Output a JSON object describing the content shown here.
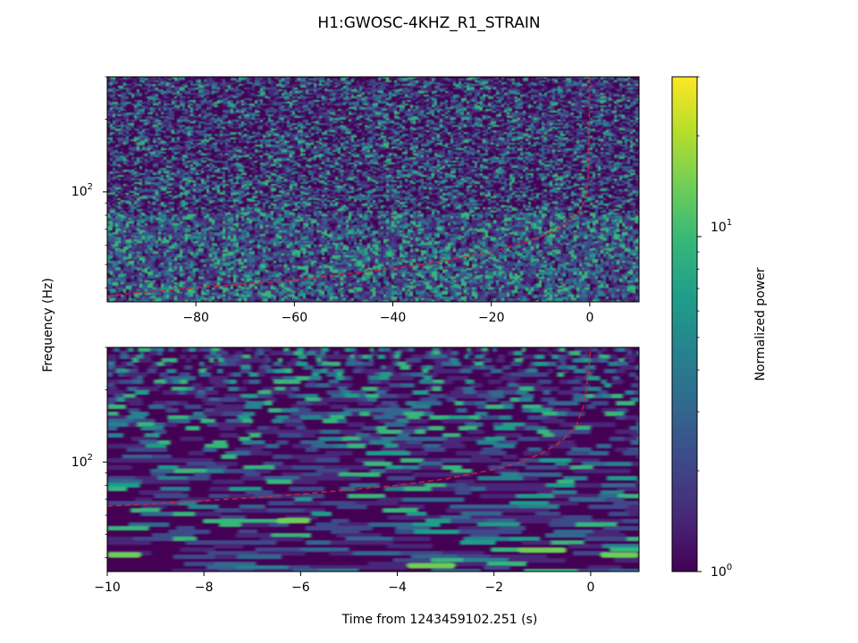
{
  "chart_data": [
    {
      "type": "heatmap",
      "title": "H1:GWOSC-4KHZ_R1_STRAIN",
      "ylabel": "Frequency (Hz)",
      "xlabel": "",
      "xlim": [
        -98,
        10
      ],
      "ylim": [
        35,
        300
      ],
      "yscale": "log",
      "x_ticks": [
        -80,
        -60,
        -40,
        -20,
        0
      ],
      "x_tick_labels": [
        "−80",
        "−60",
        "−40",
        "−20",
        "0"
      ],
      "y_ticks": [
        100
      ],
      "y_tick_labels": [
        "10",
        "2"
      ],
      "overlay": {
        "style": "dashed",
        "color": "#d62728",
        "x": [
          -98,
          -90,
          -80,
          -70,
          -60,
          -50,
          -40,
          -30,
          -20,
          -15,
          -10,
          -5,
          -2,
          -1,
          -0.5,
          -0.2,
          0
        ],
        "y": [
          37,
          38.5,
          40,
          41.5,
          43,
          45.5,
          48,
          51.5,
          56.5,
          60,
          65,
          73,
          84,
          92,
          105,
          130,
          300
        ]
      }
    },
    {
      "type": "heatmap",
      "xlabel": "Time from 1243459102.251 (s)",
      "ylabel": "Frequency (Hz)",
      "xlim": [
        -10,
        1
      ],
      "ylim": [
        35,
        300
      ],
      "yscale": "log",
      "x_ticks": [
        -10,
        -8,
        -6,
        -4,
        -2,
        0
      ],
      "x_tick_labels": [
        "−10",
        "−8",
        "−6",
        "−4",
        "−2",
        "0"
      ],
      "y_ticks": [
        100
      ],
      "y_tick_labels": [
        "10",
        "2"
      ],
      "bright_bands": [
        {
          "x": [
            -10,
            -9.3
          ],
          "y": 41
        },
        {
          "x": [
            -6.5,
            -5.8
          ],
          "y": 57
        },
        {
          "x": [
            -1.5,
            -0.5
          ],
          "y": 43
        },
        {
          "x": [
            0.2,
            1
          ],
          "y": 41
        },
        {
          "x": [
            -3.8,
            -2.8
          ],
          "y": 37
        }
      ],
      "overlay": {
        "style": "dashed",
        "color": "#d62728",
        "x": [
          -10,
          -9,
          -8,
          -7,
          -6,
          -5,
          -4,
          -3,
          -2,
          -1.5,
          -1,
          -0.6,
          -0.3,
          -0.15,
          -0.05,
          0
        ],
        "y": [
          65.5,
          67,
          69,
          71,
          73.5,
          76.5,
          80,
          85,
          93,
          99,
          109,
          122,
          142,
          170,
          230,
          300
        ]
      }
    }
  ],
  "colorbar": {
    "label": "Normalized power",
    "scale": "log",
    "range": [
      1,
      30
    ],
    "colormap": "viridis",
    "ticks": [
      {
        "value": 1,
        "base": "10",
        "exp": "0"
      },
      {
        "value": 10,
        "base": "10",
        "exp": "1"
      }
    ]
  },
  "colors": {
    "viridis": [
      "#440154",
      "#482878",
      "#3e4989",
      "#31688e",
      "#26828e",
      "#1f9e89",
      "#35b779",
      "#6ece58",
      "#b5de2b",
      "#fde725"
    ],
    "background": "#440154",
    "overlay": "#d62728"
  }
}
